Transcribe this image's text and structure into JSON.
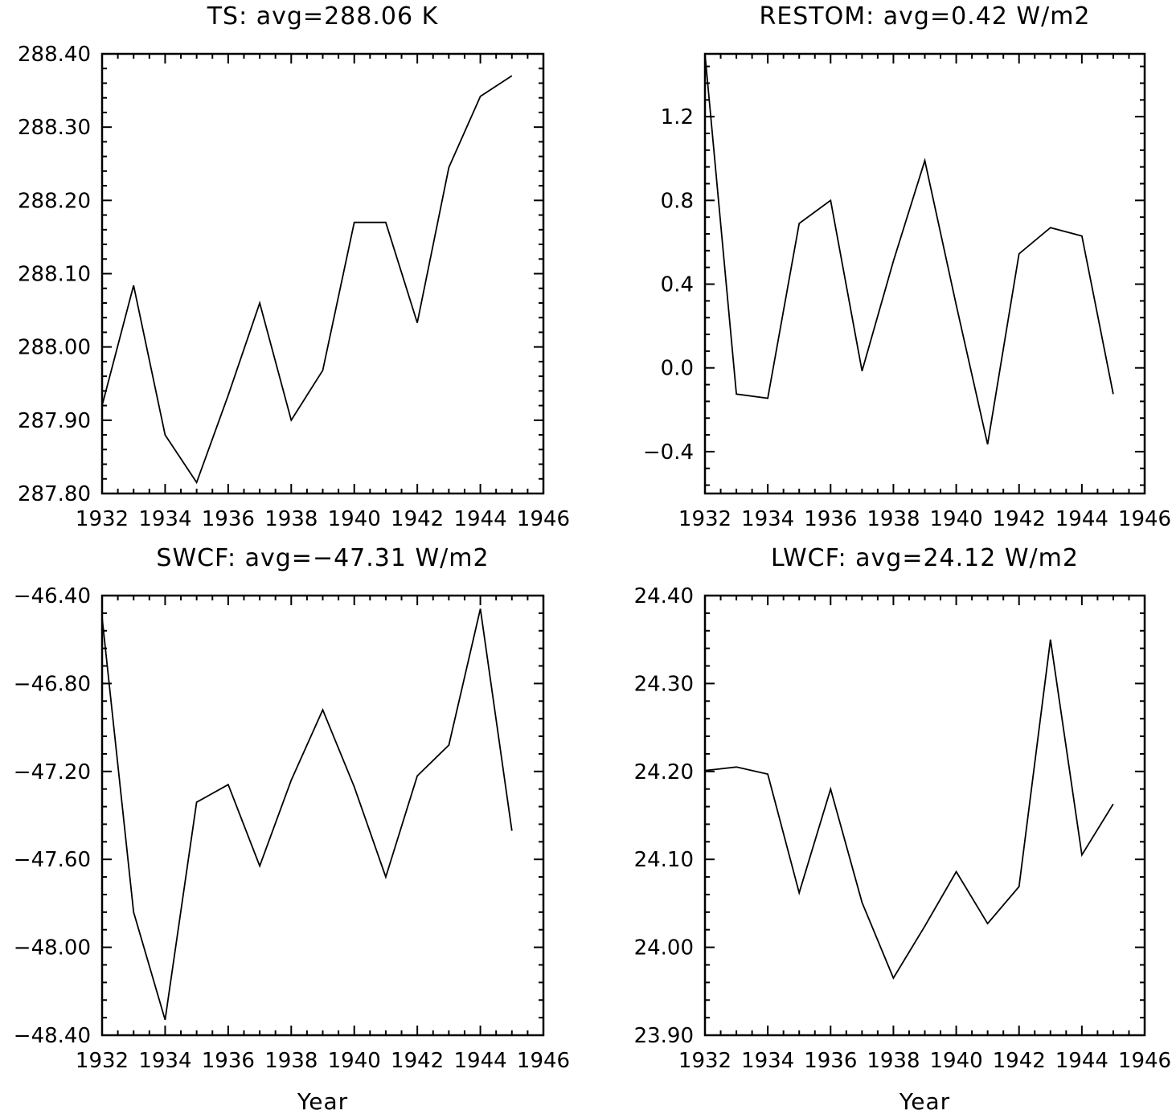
{
  "chart_data": [
    {
      "type": "line",
      "title": "TS: avg=288.06 K",
      "xlabel": "",
      "ylabel": "",
      "xlim": [
        1932,
        1946
      ],
      "ylim": [
        287.8,
        288.4
      ],
      "xticks": [
        1932,
        1934,
        1936,
        1938,
        1940,
        1942,
        1944,
        1946
      ],
      "xtick_labels": [
        "1932",
        "1934",
        "1936",
        "1938",
        "1940",
        "1942",
        "1944",
        "1946"
      ],
      "yticks": [
        287.8,
        287.9,
        288.0,
        288.1,
        288.2,
        288.3,
        288.4
      ],
      "ytick_labels": [
        "287.80",
        "287.90",
        "288.00",
        "288.10",
        "288.20",
        "288.30",
        "288.40"
      ],
      "x": [
        1932,
        1933,
        1934,
        1935,
        1936,
        1937,
        1938,
        1939,
        1940,
        1941,
        1942,
        1943,
        1944,
        1945
      ],
      "values": [
        287.92,
        288.084,
        287.88,
        287.815,
        287.934,
        288.06,
        287.9,
        287.968,
        288.17,
        288.17,
        288.033,
        288.245,
        288.342,
        288.37
      ],
      "grid": false
    },
    {
      "type": "line",
      "title": "RESTOM: avg=0.42 W/m2",
      "xlabel": "",
      "ylabel": "",
      "xlim": [
        1932,
        1946
      ],
      "ylim": [
        -0.6,
        1.5
      ],
      "xticks": [
        1932,
        1934,
        1936,
        1938,
        1940,
        1942,
        1944,
        1946
      ],
      "xtick_labels": [
        "1932",
        "1934",
        "1936",
        "1938",
        "1940",
        "1942",
        "1944",
        "1946"
      ],
      "yticks": [
        -0.4,
        0.0,
        0.4,
        0.8,
        1.2
      ],
      "ytick_labels": [
        "−0.4",
        "0.0",
        "0.4",
        "0.8",
        "1.2"
      ],
      "x": [
        1932,
        1933,
        1934,
        1935,
        1936,
        1937,
        1938,
        1939,
        1940,
        1941,
        1942,
        1943,
        1944,
        1945
      ],
      "values": [
        1.5,
        -0.125,
        -0.145,
        0.69,
        0.8,
        -0.015,
        0.51,
        0.99,
        0.3,
        -0.365,
        0.545,
        0.67,
        0.63,
        -0.125
      ],
      "grid": false
    },
    {
      "type": "line",
      "title": "SWCF: avg=−47.31 W/m2",
      "xlabel": "Year",
      "ylabel": "",
      "xlim": [
        1932,
        1946
      ],
      "ylim": [
        -48.4,
        -46.4
      ],
      "xticks": [
        1932,
        1934,
        1936,
        1938,
        1940,
        1942,
        1944,
        1946
      ],
      "xtick_labels": [
        "1932",
        "1934",
        "1936",
        "1938",
        "1940",
        "1942",
        "1944",
        "1946"
      ],
      "yticks": [
        -48.4,
        -48.0,
        -47.6,
        -47.2,
        -46.8,
        -46.4
      ],
      "ytick_labels": [
        "−48.40",
        "−48.00",
        "−47.60",
        "−47.20",
        "−46.80",
        "−46.40"
      ],
      "x": [
        1932,
        1933,
        1934,
        1935,
        1936,
        1937,
        1938,
        1939,
        1940,
        1941,
        1942,
        1943,
        1944,
        1945
      ],
      "values": [
        -46.5,
        -47.84,
        -48.33,
        -47.34,
        -47.26,
        -47.63,
        -47.24,
        -46.92,
        -47.27,
        -47.68,
        -47.22,
        -47.08,
        -46.46,
        -47.47
      ],
      "grid": false
    },
    {
      "type": "line",
      "title": "LWCF: avg=24.12 W/m2",
      "xlabel": "Year",
      "ylabel": "",
      "xlim": [
        1932,
        1946
      ],
      "ylim": [
        23.9,
        24.4
      ],
      "xticks": [
        1932,
        1934,
        1936,
        1938,
        1940,
        1942,
        1944,
        1946
      ],
      "xtick_labels": [
        "1932",
        "1934",
        "1936",
        "1938",
        "1940",
        "1942",
        "1944",
        "1946"
      ],
      "yticks": [
        23.9,
        24.0,
        24.1,
        24.2,
        24.3,
        24.4
      ],
      "ytick_labels": [
        "23.90",
        "24.00",
        "24.10",
        "24.20",
        "24.30",
        "24.40"
      ],
      "x": [
        1932,
        1933,
        1934,
        1935,
        1936,
        1937,
        1938,
        1939,
        1940,
        1941,
        1942,
        1943,
        1944,
        1945
      ],
      "values": [
        24.201,
        24.205,
        24.197,
        24.062,
        24.18,
        24.051,
        23.965,
        24.024,
        24.086,
        24.027,
        24.069,
        24.35,
        24.105,
        24.163
      ],
      "grid": false
    }
  ],
  "style": {
    "line_color": "#000000",
    "axis_color": "#000000",
    "background": "#ffffff"
  }
}
